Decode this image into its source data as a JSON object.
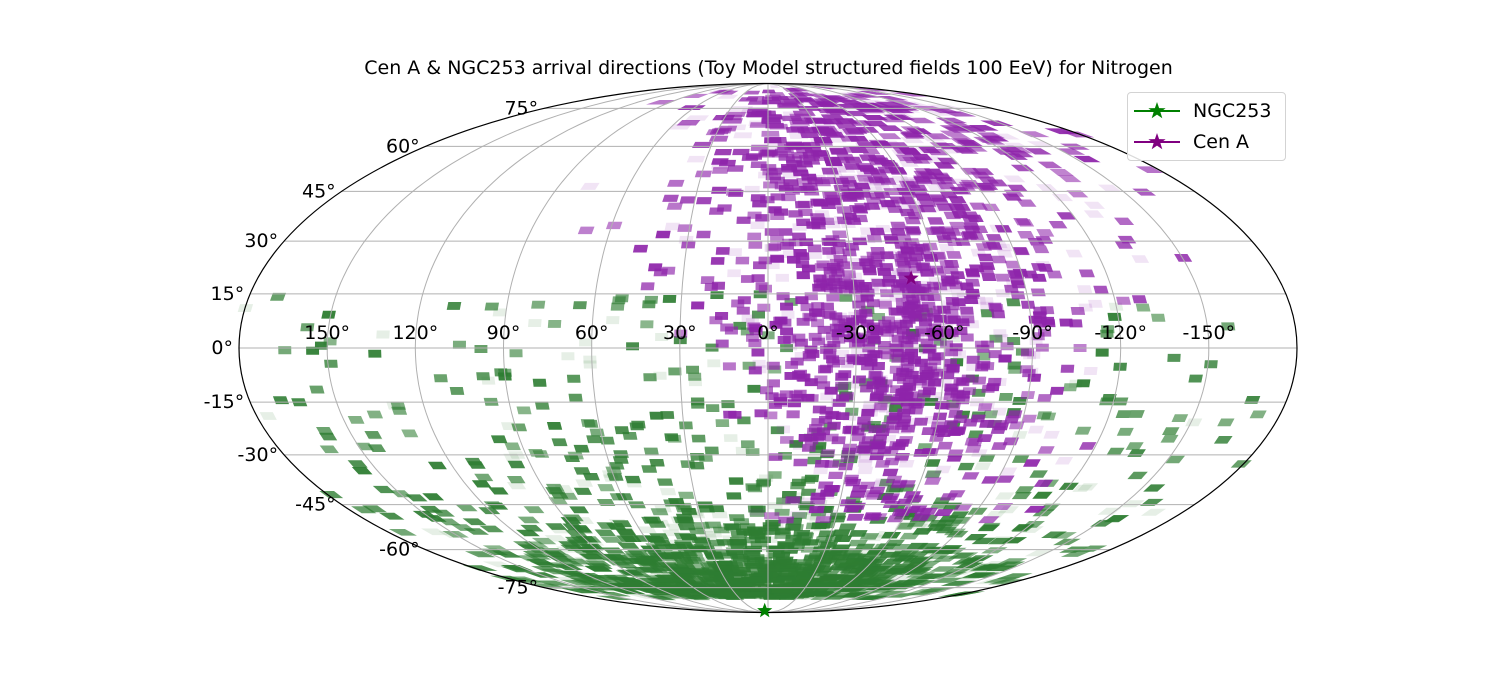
{
  "chart_data": {
    "type": "heatmap",
    "projection": "mollweide",
    "title": "Cen A & NGC253 arrival directions (Toy Model structured fields 100 EeV) for Nitrogen",
    "x_tick_labels": [
      "150°",
      "120°",
      "90°",
      "60°",
      "30°",
      "0°",
      "-30°",
      "-60°",
      "-90°",
      "-120°",
      "-150°"
    ],
    "x_ticks": [
      150,
      120,
      90,
      60,
      30,
      0,
      -30,
      -60,
      -90,
      -120,
      -150
    ],
    "y_tick_labels": [
      "75°",
      "60°",
      "45°",
      "30°",
      "15°",
      "0°",
      "-15°",
      "-30°",
      "-45°",
      "-60°",
      "-75°"
    ],
    "y_ticks": [
      75,
      60,
      45,
      30,
      15,
      0,
      -15,
      -30,
      -45,
      -60,
      -75
    ],
    "grid": true,
    "legend_placement": "top-right",
    "series": [
      {
        "name": "NGC253",
        "color": "#008000",
        "marker": "star",
        "source": [
          9.7,
          -87.9
        ],
        "density_center": [
          5,
          -80
        ],
        "density_spread": [
          55,
          18
        ]
      },
      {
        "name": "Cen A",
        "color": "#800080",
        "marker": "star",
        "source": [
          -50.5,
          19.4
        ],
        "density_center": [
          -45,
          10
        ],
        "density_spread": [
          25,
          30
        ]
      }
    ],
    "colors": {
      "ngc": "#2e7d32",
      "cena": "#8e24aa",
      "grid": "#b0b0b0"
    }
  }
}
